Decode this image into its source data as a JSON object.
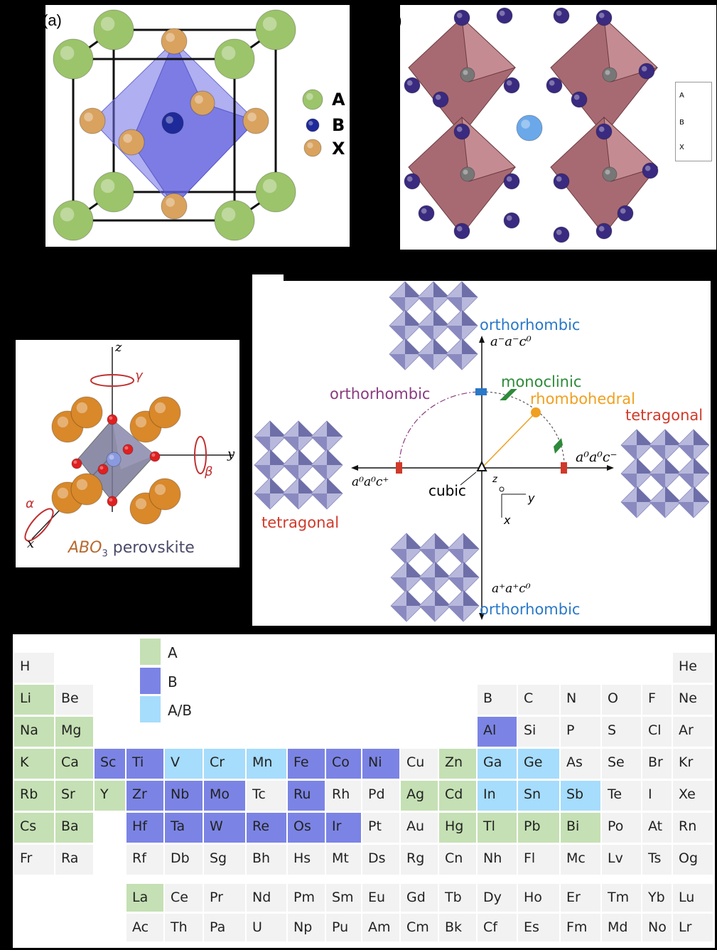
{
  "panel_a": {
    "label": "(a)",
    "legend": [
      {
        "key": "A",
        "color": "#9cc46a"
      },
      {
        "key": "B",
        "color": "#1f2a9a"
      },
      {
        "key": "X",
        "color": "#d9a25e"
      }
    ]
  },
  "panel_b": {
    "label": "b)",
    "legend": [
      {
        "key": "A",
        "color": "#6aa8ea"
      },
      {
        "key": "B",
        "color": "#777777"
      },
      {
        "key": "X",
        "color": "#3a2a80"
      }
    ]
  },
  "octahedron_panel": {
    "axis_z": "z",
    "axis_y": "y",
    "axis_x": "x",
    "alpha": "α",
    "beta": "β",
    "gamma": "γ",
    "caption_main": "ABO",
    "caption_sub": "3",
    "caption_tail": " perovskite"
  },
  "tilt_diagram": {
    "top_phase": "orthorhombic",
    "top_glazer": "a⁻a⁻c⁰",
    "monoclinic": "monoclinic",
    "left_arc_phase": "orthorhombic",
    "rhombohedral": "rhombohedral",
    "right_phase": "tetragonal",
    "right_glazer": "a⁰a⁰c⁻",
    "left_glazer": "a⁰a⁰c⁺",
    "origin": "cubic",
    "left_phase": "tetragonal",
    "bottom_glazer": "a⁺a⁺c⁰",
    "bottom_phase": "orthorhombic",
    "frame_z": "z",
    "frame_y": "y",
    "frame_x": "x",
    "colors": {
      "orthorhombic_blue": "#2a78c8",
      "orthorhombic_purple": "#8a3a80",
      "monoclinic": "#2e8a3a",
      "rhombohedral": "#f0a020",
      "tetragonal": "#d03a2a"
    }
  },
  "periodic_table": {
    "legend": [
      {
        "key": "A",
        "label": "A",
        "color": "#c5e0b4"
      },
      {
        "key": "B",
        "label": "B",
        "color": "#7b84e4"
      },
      {
        "key": "AB",
        "label": "A/B",
        "color": "#a6dcfc"
      }
    ],
    "default_color": "#f2f2f2",
    "elements": [
      {
        "s": "H",
        "p": 1,
        "g": 1,
        "c": ""
      },
      {
        "s": "He",
        "p": 1,
        "g": 18,
        "c": ""
      },
      {
        "s": "Li",
        "p": 2,
        "g": 1,
        "c": "A"
      },
      {
        "s": "Be",
        "p": 2,
        "g": 2,
        "c": ""
      },
      {
        "s": "B",
        "p": 2,
        "g": 13,
        "c": ""
      },
      {
        "s": "C",
        "p": 2,
        "g": 14,
        "c": ""
      },
      {
        "s": "N",
        "p": 2,
        "g": 15,
        "c": ""
      },
      {
        "s": "O",
        "p": 2,
        "g": 16,
        "c": ""
      },
      {
        "s": "F",
        "p": 2,
        "g": 17,
        "c": ""
      },
      {
        "s": "Ne",
        "p": 2,
        "g": 18,
        "c": ""
      },
      {
        "s": "Na",
        "p": 3,
        "g": 1,
        "c": "A"
      },
      {
        "s": "Mg",
        "p": 3,
        "g": 2,
        "c": "A"
      },
      {
        "s": "Al",
        "p": 3,
        "g": 13,
        "c": "B"
      },
      {
        "s": "Si",
        "p": 3,
        "g": 14,
        "c": ""
      },
      {
        "s": "P",
        "p": 3,
        "g": 15,
        "c": ""
      },
      {
        "s": "S",
        "p": 3,
        "g": 16,
        "c": ""
      },
      {
        "s": "Cl",
        "p": 3,
        "g": 17,
        "c": ""
      },
      {
        "s": "Ar",
        "p": 3,
        "g": 18,
        "c": ""
      },
      {
        "s": "K",
        "p": 4,
        "g": 1,
        "c": "A"
      },
      {
        "s": "Ca",
        "p": 4,
        "g": 2,
        "c": "A"
      },
      {
        "s": "Sc",
        "p": 4,
        "g": 3,
        "c": "B"
      },
      {
        "s": "Ti",
        "p": 4,
        "g": 4,
        "c": "B"
      },
      {
        "s": "V",
        "p": 4,
        "g": 5,
        "c": "AB"
      },
      {
        "s": "Cr",
        "p": 4,
        "g": 6,
        "c": "AB"
      },
      {
        "s": "Mn",
        "p": 4,
        "g": 7,
        "c": "AB"
      },
      {
        "s": "Fe",
        "p": 4,
        "g": 8,
        "c": "B"
      },
      {
        "s": "Co",
        "p": 4,
        "g": 9,
        "c": "B"
      },
      {
        "s": "Ni",
        "p": 4,
        "g": 10,
        "c": "B"
      },
      {
        "s": "Cu",
        "p": 4,
        "g": 11,
        "c": ""
      },
      {
        "s": "Zn",
        "p": 4,
        "g": 12,
        "c": "A"
      },
      {
        "s": "Ga",
        "p": 4,
        "g": 13,
        "c": "AB"
      },
      {
        "s": "Ge",
        "p": 4,
        "g": 14,
        "c": "AB"
      },
      {
        "s": "As",
        "p": 4,
        "g": 15,
        "c": ""
      },
      {
        "s": "Se",
        "p": 4,
        "g": 16,
        "c": ""
      },
      {
        "s": "Br",
        "p": 4,
        "g": 17,
        "c": ""
      },
      {
        "s": "Kr",
        "p": 4,
        "g": 18,
        "c": ""
      },
      {
        "s": "Rb",
        "p": 5,
        "g": 1,
        "c": "A"
      },
      {
        "s": "Sr",
        "p": 5,
        "g": 2,
        "c": "A"
      },
      {
        "s": "Y",
        "p": 5,
        "g": 3,
        "c": "A"
      },
      {
        "s": "Zr",
        "p": 5,
        "g": 4,
        "c": "B"
      },
      {
        "s": "Nb",
        "p": 5,
        "g": 5,
        "c": "B"
      },
      {
        "s": "Mo",
        "p": 5,
        "g": 6,
        "c": "B"
      },
      {
        "s": "Tc",
        "p": 5,
        "g": 7,
        "c": ""
      },
      {
        "s": "Ru",
        "p": 5,
        "g": 8,
        "c": "B"
      },
      {
        "s": "Rh",
        "p": 5,
        "g": 9,
        "c": ""
      },
      {
        "s": "Pd",
        "p": 5,
        "g": 10,
        "c": ""
      },
      {
        "s": "Ag",
        "p": 5,
        "g": 11,
        "c": "A"
      },
      {
        "s": "Cd",
        "p": 5,
        "g": 12,
        "c": "A"
      },
      {
        "s": "In",
        "p": 5,
        "g": 13,
        "c": "AB"
      },
      {
        "s": "Sn",
        "p": 5,
        "g": 14,
        "c": "AB"
      },
      {
        "s": "Sb",
        "p": 5,
        "g": 15,
        "c": "AB"
      },
      {
        "s": "Te",
        "p": 5,
        "g": 16,
        "c": ""
      },
      {
        "s": "I",
        "p": 5,
        "g": 17,
        "c": ""
      },
      {
        "s": "Xe",
        "p": 5,
        "g": 18,
        "c": ""
      },
      {
        "s": "Cs",
        "p": 6,
        "g": 1,
        "c": "A"
      },
      {
        "s": "Ba",
        "p": 6,
        "g": 2,
        "c": "A"
      },
      {
        "s": "Hf",
        "p": 6,
        "g": 4,
        "c": "B"
      },
      {
        "s": "Ta",
        "p": 6,
        "g": 5,
        "c": "B"
      },
      {
        "s": "W",
        "p": 6,
        "g": 6,
        "c": "B"
      },
      {
        "s": "Re",
        "p": 6,
        "g": 7,
        "c": "B"
      },
      {
        "s": "Os",
        "p": 6,
        "g": 8,
        "c": "B"
      },
      {
        "s": "Ir",
        "p": 6,
        "g": 9,
        "c": "B"
      },
      {
        "s": "Pt",
        "p": 6,
        "g": 10,
        "c": ""
      },
      {
        "s": "Au",
        "p": 6,
        "g": 11,
        "c": ""
      },
      {
        "s": "Hg",
        "p": 6,
        "g": 12,
        "c": "A"
      },
      {
        "s": "Tl",
        "p": 6,
        "g": 13,
        "c": "A"
      },
      {
        "s": "Pb",
        "p": 6,
        "g": 14,
        "c": "A"
      },
      {
        "s": "Bi",
        "p": 6,
        "g": 15,
        "c": "A"
      },
      {
        "s": "Po",
        "p": 6,
        "g": 16,
        "c": ""
      },
      {
        "s": "At",
        "p": 6,
        "g": 17,
        "c": ""
      },
      {
        "s": "Rn",
        "p": 6,
        "g": 18,
        "c": ""
      },
      {
        "s": "Fr",
        "p": 7,
        "g": 1,
        "c": ""
      },
      {
        "s": "Ra",
        "p": 7,
        "g": 2,
        "c": ""
      },
      {
        "s": "Rf",
        "p": 7,
        "g": 4,
        "c": ""
      },
      {
        "s": "Db",
        "p": 7,
        "g": 5,
        "c": ""
      },
      {
        "s": "Sg",
        "p": 7,
        "g": 6,
        "c": ""
      },
      {
        "s": "Bh",
        "p": 7,
        "g": 7,
        "c": ""
      },
      {
        "s": "Hs",
        "p": 7,
        "g": 8,
        "c": ""
      },
      {
        "s": "Mt",
        "p": 7,
        "g": 9,
        "c": ""
      },
      {
        "s": "Ds",
        "p": 7,
        "g": 10,
        "c": ""
      },
      {
        "s": "Rg",
        "p": 7,
        "g": 11,
        "c": ""
      },
      {
        "s": "Cn",
        "p": 7,
        "g": 12,
        "c": ""
      },
      {
        "s": "Nh",
        "p": 7,
        "g": 13,
        "c": ""
      },
      {
        "s": "Fl",
        "p": 7,
        "g": 14,
        "c": ""
      },
      {
        "s": "Mc",
        "p": 7,
        "g": 15,
        "c": ""
      },
      {
        "s": "Lv",
        "p": 7,
        "g": 16,
        "c": ""
      },
      {
        "s": "Ts",
        "p": 7,
        "g": 17,
        "c": ""
      },
      {
        "s": "Og",
        "p": 7,
        "g": 18,
        "c": ""
      }
    ],
    "lanthanides": [
      {
        "s": "La",
        "c": "A"
      },
      {
        "s": "Ce",
        "c": ""
      },
      {
        "s": "Pr",
        "c": ""
      },
      {
        "s": "Nd",
        "c": ""
      },
      {
        "s": "Pm",
        "c": ""
      },
      {
        "s": "Sm",
        "c": ""
      },
      {
        "s": "Eu",
        "c": ""
      },
      {
        "s": "Gd",
        "c": ""
      },
      {
        "s": "Tb",
        "c": ""
      },
      {
        "s": "Dy",
        "c": ""
      },
      {
        "s": "Ho",
        "c": ""
      },
      {
        "s": "Er",
        "c": ""
      },
      {
        "s": "Tm",
        "c": ""
      },
      {
        "s": "Yb",
        "c": ""
      },
      {
        "s": "Lu",
        "c": ""
      }
    ],
    "actinides": [
      {
        "s": "Ac",
        "c": ""
      },
      {
        "s": "Th",
        "c": ""
      },
      {
        "s": "Pa",
        "c": ""
      },
      {
        "s": "U",
        "c": ""
      },
      {
        "s": "Np",
        "c": ""
      },
      {
        "s": "Pu",
        "c": ""
      },
      {
        "s": "Am",
        "c": ""
      },
      {
        "s": "Cm",
        "c": ""
      },
      {
        "s": "Bk",
        "c": ""
      },
      {
        "s": "Cf",
        "c": ""
      },
      {
        "s": "Es",
        "c": ""
      },
      {
        "s": "Fm",
        "c": ""
      },
      {
        "s": "Md",
        "c": ""
      },
      {
        "s": "No",
        "c": ""
      },
      {
        "s": "Lr",
        "c": ""
      }
    ]
  }
}
